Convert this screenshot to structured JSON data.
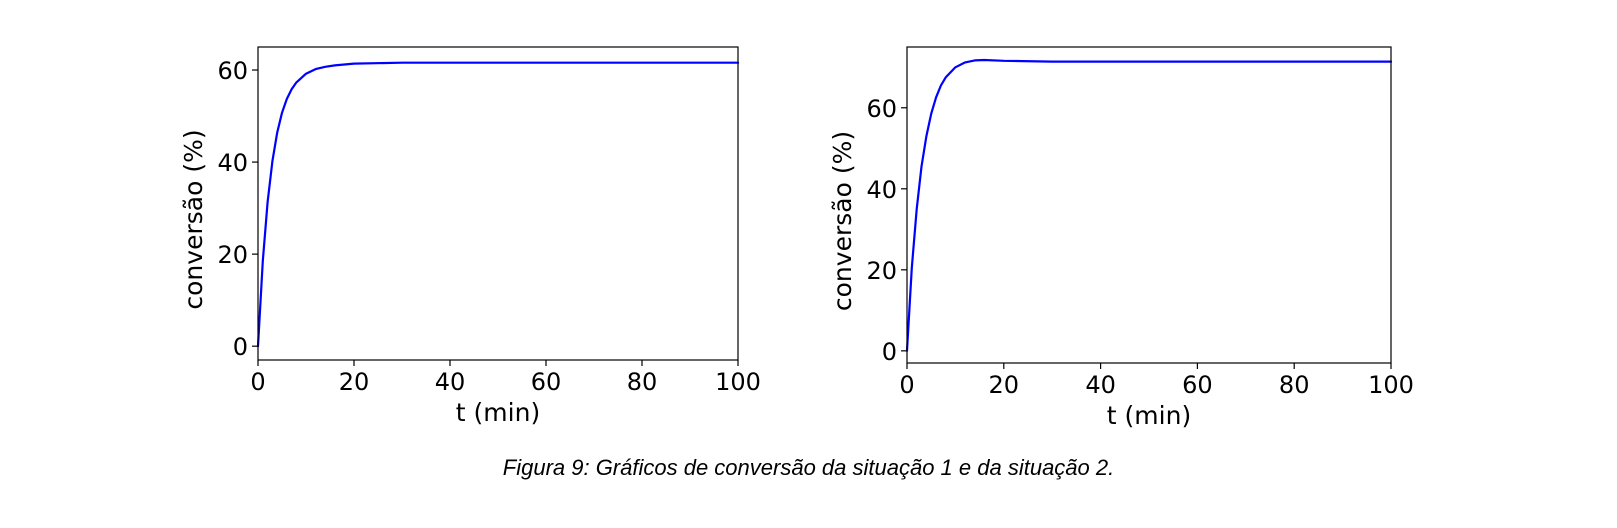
{
  "caption": "Figura 9: Gráficos de conversão da situação 1 e da situação 2.",
  "chart_data": [
    {
      "type": "line",
      "title": "",
      "xlabel": "t (min)",
      "ylabel": "conversão (%)",
      "xlim": [
        0,
        100
      ],
      "ylim": [
        -3,
        65
      ],
      "xticks": [
        0,
        20,
        40,
        60,
        80,
        100
      ],
      "yticks": [
        0,
        20,
        40,
        60
      ],
      "grid": false,
      "line_color": "#0000ff",
      "series": [
        {
          "x": [
            0,
            1,
            2,
            3,
            4,
            5,
            6,
            7,
            8,
            10,
            12,
            14,
            16,
            20,
            30,
            40,
            60,
            80,
            100
          ],
          "values": [
            0,
            18.5,
            31.3,
            40.2,
            46.4,
            50.7,
            53.7,
            55.8,
            57.3,
            59.2,
            60.2,
            60.7,
            61.0,
            61.4,
            61.6,
            61.6,
            61.6,
            61.6,
            61.6
          ]
        }
      ]
    },
    {
      "type": "line",
      "title": "",
      "xlabel": "t (min)",
      "ylabel": "conversão (%)",
      "xlim": [
        0,
        100
      ],
      "ylim": [
        -3,
        75
      ],
      "xticks": [
        0,
        20,
        40,
        60,
        80,
        100
      ],
      "yticks": [
        0,
        20,
        40,
        60
      ],
      "grid": false,
      "line_color": "#0000ff",
      "series": [
        {
          "x": [
            0,
            1,
            2,
            3,
            4,
            5,
            6,
            7,
            8,
            10,
            12,
            14,
            16,
            20,
            30,
            40,
            60,
            80,
            100
          ],
          "values": [
            0,
            20.5,
            35.0,
            45.5,
            53.0,
            58.5,
            62.5,
            65.5,
            67.5,
            70.0,
            71.2,
            71.7,
            71.8,
            71.6,
            71.4,
            71.4,
            71.4,
            71.4,
            71.4
          ]
        }
      ]
    }
  ]
}
